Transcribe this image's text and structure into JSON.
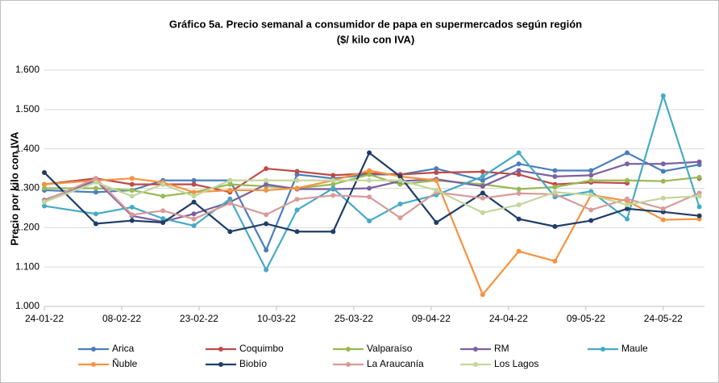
{
  "chart_data": {
    "type": "line",
    "title": "Gráfico 5a. Precio semanal a consumidor de papa en supermercados según región",
    "subtitle": "($/ kilo con IVA)",
    "y_label": "Precio por kilo con IVA",
    "x": [
      "24-01-22",
      "03-02-22",
      "10-02-22",
      "16-02-22",
      "22-02-22",
      "01-03-22",
      "08-03-22",
      "14-03-22",
      "21-03-22",
      "28-03-22",
      "03-04-22",
      "10-04-22",
      "19-04-22",
      "26-04-22",
      "03-05-22",
      "10-05-22",
      "17-05-22",
      "24-05-22",
      "31-05-22"
    ],
    "xlim": [
      "24-01-22",
      "01-06-22"
    ],
    "xticks": [
      "24-01-22",
      "08-02-22",
      "23-02-22",
      "10-03-22",
      "25-03-22",
      "09-04-22",
      "24-04-22",
      "09-05-22",
      "24-05-22"
    ],
    "ylim": [
      1000,
      1600
    ],
    "yticks": [
      {
        "value": 1000,
        "label": "1.000"
      },
      {
        "value": 1100,
        "label": "1.100"
      },
      {
        "value": 1200,
        "label": "1.200"
      },
      {
        "value": 1300,
        "label": "1.300"
      },
      {
        "value": 1400,
        "label": "1.400"
      },
      {
        "value": 1500,
        "label": "1.500"
      },
      {
        "value": 1600,
        "label": "1.600"
      }
    ],
    "grid": true,
    "legend": "bottom",
    "series": [
      {
        "name": "Arica",
        "color": "#4a7ebb",
        "values": [
          1295,
          1290,
          1295,
          1320,
          1320,
          1320,
          1143,
          1335,
          1325,
          1335,
          1335,
          1350,
          1320,
          1362,
          1345,
          1345,
          1390,
          1343,
          1360
        ]
      },
      {
        "name": "Coquimbo",
        "color": "#be4b48",
        "values": [
          1310,
          1325,
          1310,
          1310,
          1310,
          1290,
          1350,
          1343,
          1333,
          1338,
          1335,
          1340,
          1342,
          1335,
          1310,
          1315,
          1313,
          null,
          1325
        ]
      },
      {
        "name": "Valparaíso",
        "color": "#98b954",
        "values": [
          1300,
          1300,
          1295,
          1280,
          1290,
          1310,
          1305,
          1300,
          1310,
          1335,
          1310,
          1320,
          1310,
          1298,
          1303,
          1320,
          1320,
          1318,
          1328
        ]
      },
      {
        "name": "RM",
        "color": "#7d60a0",
        "values": [
          1270,
          1320,
          1230,
          1215,
          1235,
          1265,
          1310,
          1298,
          1298,
          1300,
          1318,
          1323,
          1305,
          1345,
          1330,
          1333,
          1362,
          1362,
          1367
        ]
      },
      {
        "name": "Maule",
        "color": "#46aac5",
        "values": [
          1255,
          1235,
          1252,
          1223,
          1205,
          1273,
          1093,
          1245,
          1300,
          1217,
          1260,
          1283,
          1330,
          1390,
          1278,
          1292,
          1222,
          1535,
          1253
        ]
      },
      {
        "name": "Ñuble",
        "color": "#f69240",
        "values": [
          1310,
          1320,
          1325,
          1315,
          1290,
          1295,
          1295,
          1300,
          1320,
          1345,
          1330,
          1320,
          1030,
          1140,
          1115,
          1283,
          1268,
          1220,
          1222
        ]
      },
      {
        "name": "Biobío",
        "color": "#1f3d66",
        "values": [
          1340,
          1210,
          1218,
          1213,
          1265,
          1190,
          1210,
          1190,
          1190,
          1390,
          1330,
          1213,
          1288,
          1222,
          1203,
          1218,
          1248,
          1240,
          1230
        ]
      },
      {
        "name": "La Araucanía",
        "color": "#d89b98",
        "values": [
          1268,
          1325,
          1233,
          1243,
          1222,
          1262,
          1233,
          1272,
          1282,
          1278,
          1225,
          1290,
          1275,
          1287,
          1285,
          1245,
          1273,
          1248,
          1288
        ]
      },
      {
        "name": "Los Lagos",
        "color": "#c3d69b",
        "values": [
          1265,
          1315,
          1280,
          1310,
          1280,
          1320,
          1320,
          1320,
          1320,
          1320,
          1320,
          1295,
          1238,
          1258,
          1290,
          1283,
          1258,
          1275,
          1280
        ]
      }
    ]
  }
}
